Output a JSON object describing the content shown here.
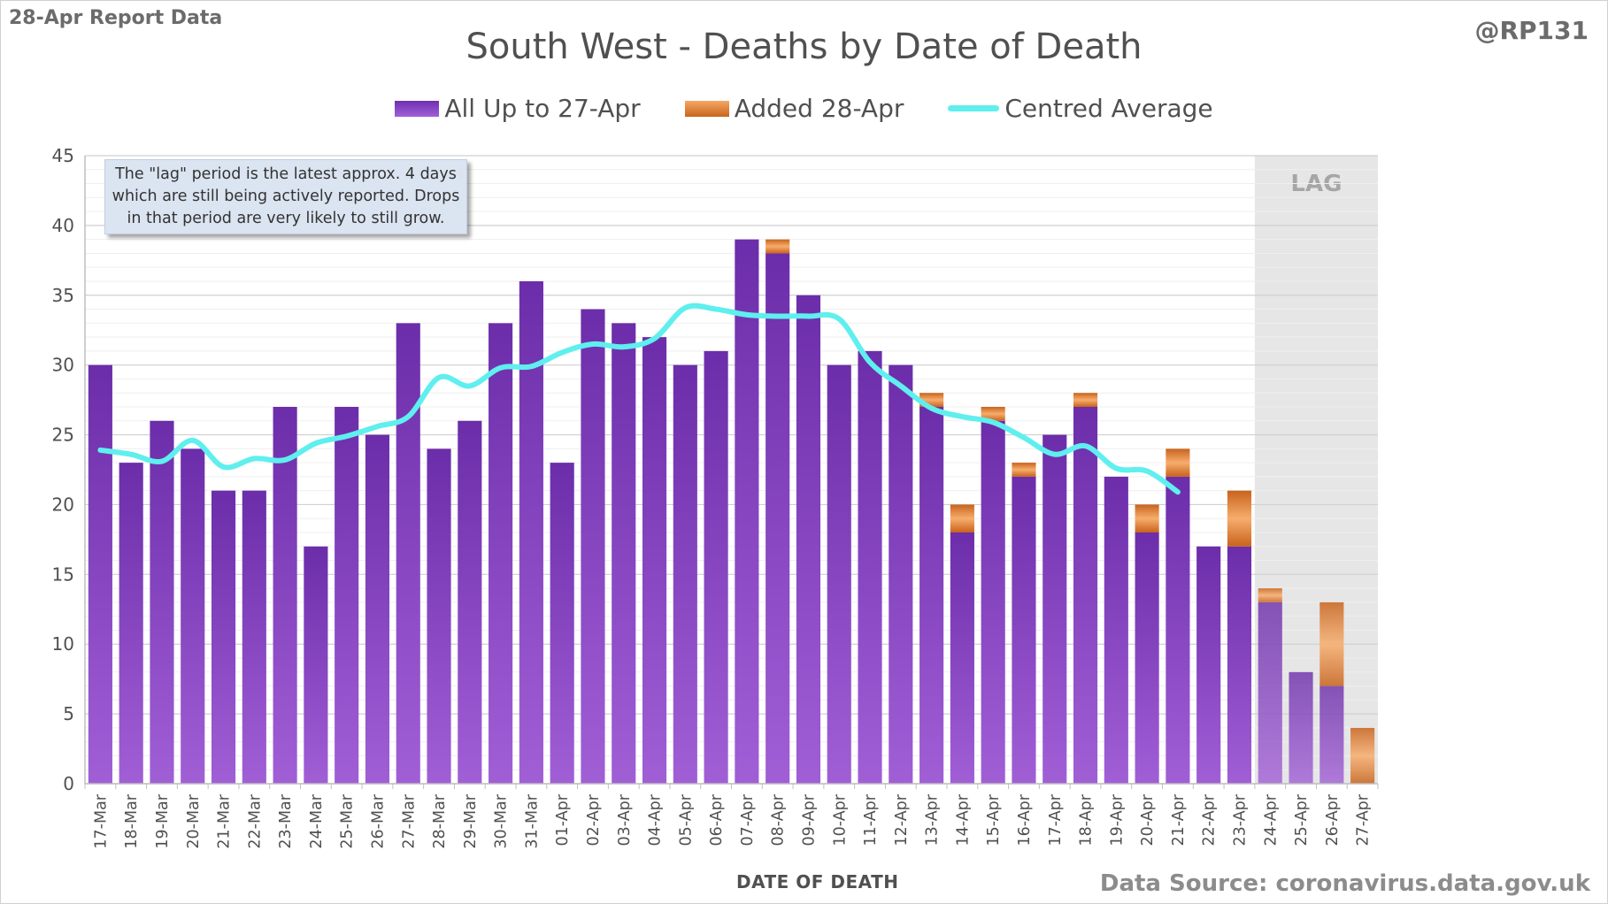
{
  "header": {
    "report_note": "28-Apr Report Data",
    "handle": "@RP131"
  },
  "annotation": {
    "text": "The \"lag\" period is the latest approx. 4 days which are still being actively reported. Drops in that period are very likely to still grow."
  },
  "footer": {
    "source": "Data Source: coronavirus.data.gov.uk"
  },
  "colors": {
    "purple_top": "#6f2fb0",
    "purple_bottom": "#a260d8",
    "orange_top": "#f6a765",
    "orange_bottom": "#c7651e",
    "average_line": "#5fefee",
    "lag_shade": "#e6e6e6",
    "gridline": "#d9d9d9"
  },
  "chart_data": {
    "type": "bar",
    "stacked": true,
    "title": "South West - Deaths by Date of Death",
    "xlabel": "DATE OF DEATH",
    "ylabel": "",
    "ylim": [
      0,
      45
    ],
    "yticks": [
      0,
      5,
      10,
      15,
      20,
      25,
      30,
      35,
      40,
      45
    ],
    "grid": true,
    "legend_position": "top-center",
    "lag_label": "LAG",
    "lag_categories": [
      "24-Apr",
      "25-Apr",
      "26-Apr",
      "27-Apr"
    ],
    "categories": [
      "17-Mar",
      "18-Mar",
      "19-Mar",
      "20-Mar",
      "21-Mar",
      "22-Mar",
      "23-Mar",
      "24-Mar",
      "25-Mar",
      "26-Mar",
      "27-Mar",
      "28-Mar",
      "29-Mar",
      "30-Mar",
      "31-Mar",
      "01-Apr",
      "02-Apr",
      "03-Apr",
      "04-Apr",
      "05-Apr",
      "06-Apr",
      "07-Apr",
      "08-Apr",
      "09-Apr",
      "10-Apr",
      "11-Apr",
      "12-Apr",
      "13-Apr",
      "14-Apr",
      "15-Apr",
      "16-Apr",
      "17-Apr",
      "18-Apr",
      "19-Apr",
      "20-Apr",
      "21-Apr",
      "22-Apr",
      "23-Apr",
      "24-Apr",
      "25-Apr",
      "26-Apr",
      "27-Apr"
    ],
    "series": [
      {
        "name": "All Up to 27-Apr",
        "kind": "bar",
        "values": [
          30,
          23,
          26,
          24,
          21,
          21,
          27,
          17,
          27,
          25,
          33,
          24,
          26,
          33,
          36,
          23,
          34,
          33,
          32,
          30,
          31,
          39,
          38,
          35,
          30,
          31,
          30,
          27,
          18,
          26,
          22,
          25,
          27,
          22,
          18,
          22,
          17,
          17,
          13,
          8,
          7,
          0
        ]
      },
      {
        "name": "Added 28-Apr",
        "kind": "bar",
        "values": [
          0,
          0,
          0,
          0,
          0,
          0,
          0,
          0,
          0,
          0,
          0,
          0,
          0,
          0,
          0,
          0,
          0,
          0,
          0,
          0,
          0,
          0,
          1,
          0,
          0,
          0,
          0,
          1,
          2,
          1,
          1,
          0,
          1,
          0,
          2,
          2,
          0,
          4,
          1,
          0,
          6,
          4
        ]
      },
      {
        "name": "Centred Average",
        "kind": "line",
        "values": [
          23.9,
          23.6,
          23.1,
          24.6,
          22.7,
          23.3,
          23.2,
          24.4,
          24.9,
          25.6,
          26.3,
          29.1,
          28.5,
          29.8,
          29.9,
          30.9,
          31.5,
          31.3,
          31.9,
          34.1,
          34.0,
          33.6,
          33.5,
          33.5,
          33.3,
          30.2,
          28.5,
          26.9,
          26.3,
          25.9,
          24.8,
          23.6,
          24.2,
          22.6,
          22.4,
          20.9,
          null,
          null,
          null,
          null,
          null,
          null
        ]
      }
    ]
  }
}
